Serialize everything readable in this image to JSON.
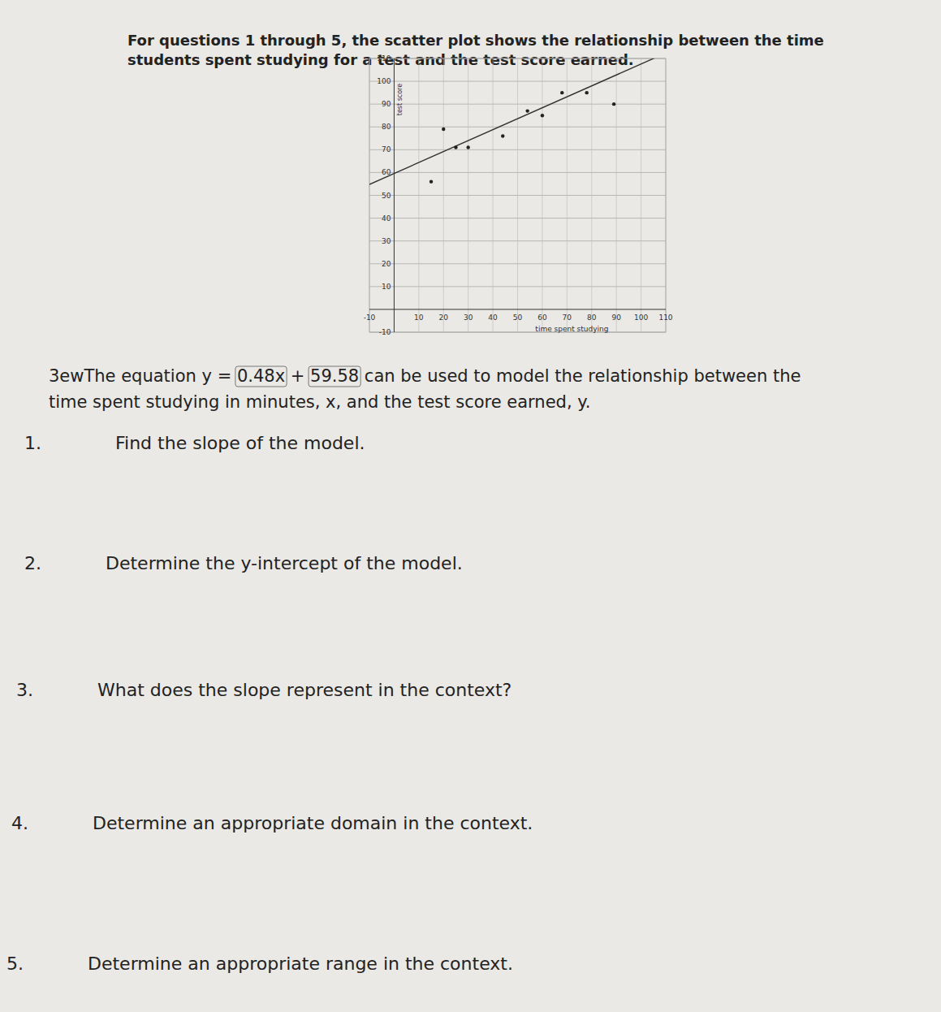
{
  "header": {
    "lines": [
      "For questions 1 through 5, the scatter plot shows the relationship between the time",
      "students spent studying for a test and the test score earned."
    ]
  },
  "chart_data": {
    "type": "scatter",
    "x": [
      15,
      20,
      25,
      30,
      44,
      54,
      60,
      68,
      78,
      89
    ],
    "values": [
      56,
      79,
      71,
      71,
      76,
      87,
      85,
      95,
      95,
      90
    ],
    "x_label": "time spent studying",
    "y_label": "test score",
    "xlim": [
      -10,
      110
    ],
    "ylim": [
      -10,
      110
    ],
    "xticks": [
      -10,
      10,
      20,
      30,
      40,
      50,
      60,
      70,
      80,
      90,
      100,
      110
    ],
    "yticks": [
      -10,
      10,
      20,
      30,
      40,
      50,
      60,
      70,
      80,
      90,
      100,
      110
    ],
    "grid": true,
    "marker": "circle",
    "color": "#222222",
    "trend": {
      "slope": 0.48,
      "intercept": 59.58
    }
  },
  "equation": {
    "lead": "3ewThe equation",
    "lhs": "y =",
    "term1": "0.48x",
    "plus": "+",
    "term2": "59.58",
    "rest1": "can be used to model the relationship between the",
    "rest2": "time spent studying in minutes, x, and the test score earned, y."
  },
  "questions": [
    {
      "number": "1.",
      "text": "Find the slope of the model."
    },
    {
      "number": "2.",
      "text": "Determine the y-intercept of the model."
    },
    {
      "number": "3.",
      "text": "What does the slope represent in the context?"
    },
    {
      "number": "4.",
      "text": "Determine an appropriate domain in the context."
    },
    {
      "number": "5.",
      "text": "Determine an appropriate range in the context."
    }
  ]
}
